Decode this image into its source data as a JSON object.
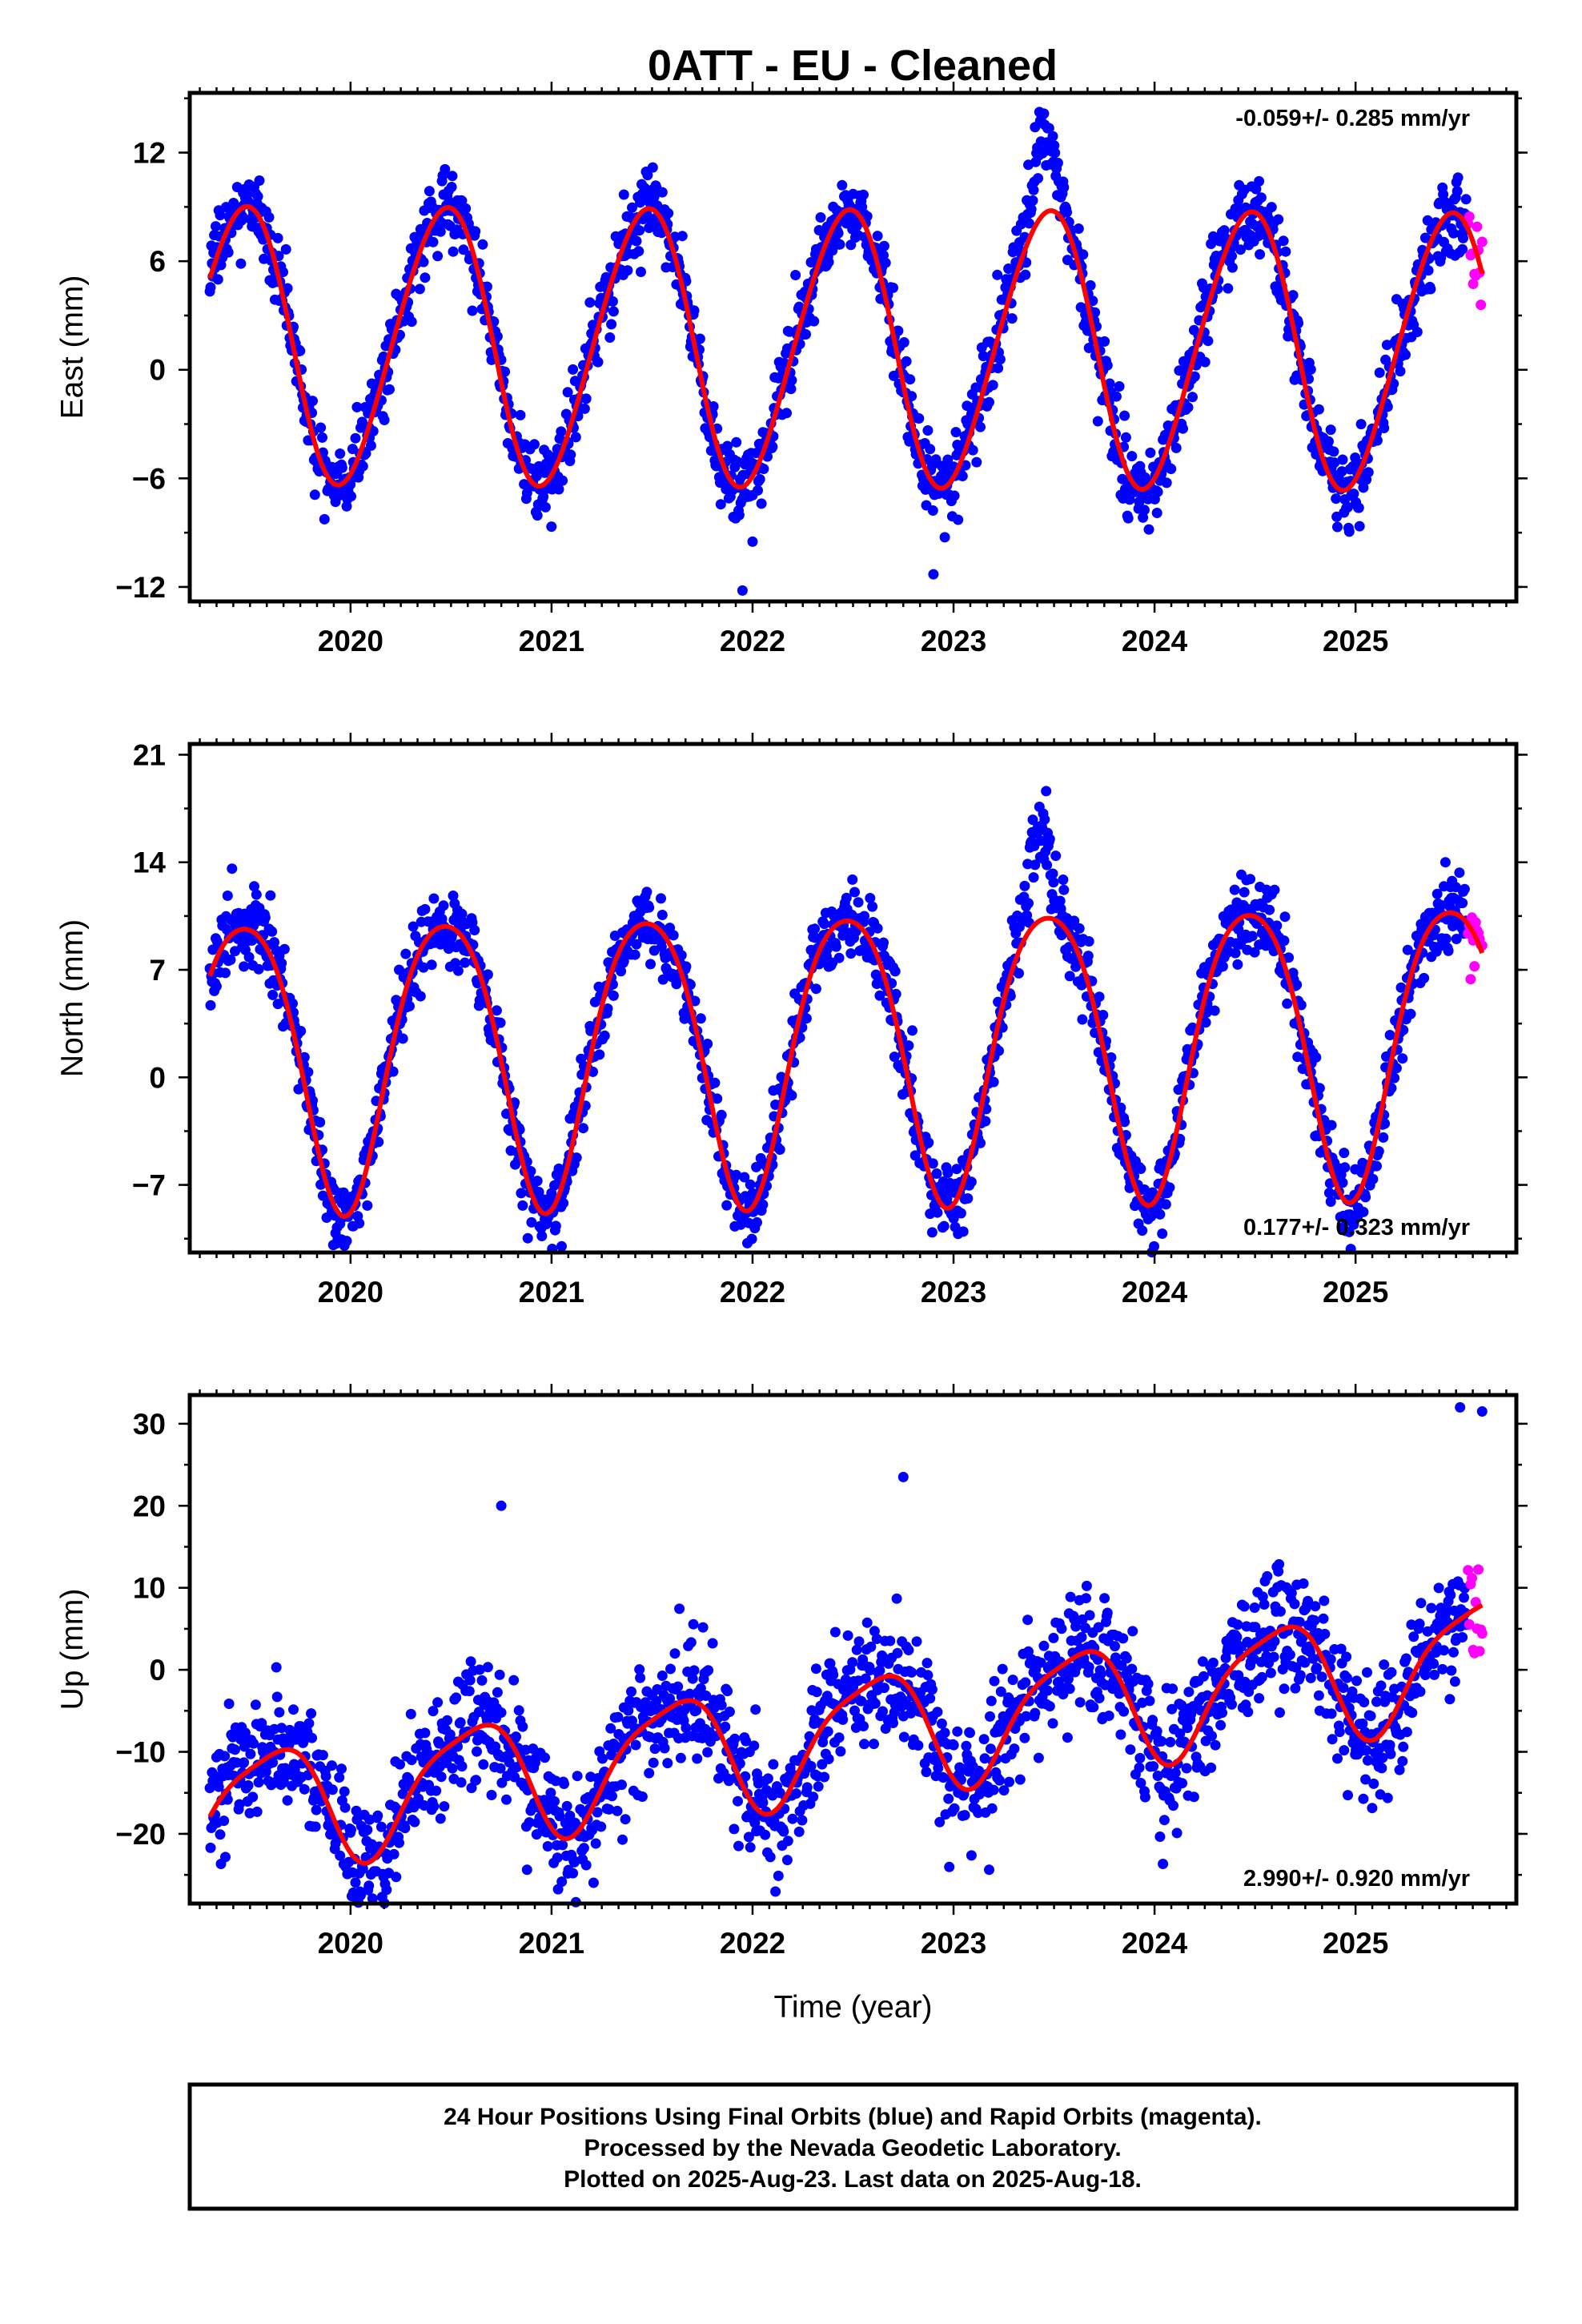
{
  "title": "0ATT  - EU - Cleaned",
  "footer": {
    "line1": "24 Hour Positions Using Final Orbits (blue) and Rapid Orbits (magenta).",
    "line2": "Processed by the Nevada Geodetic Laboratory.",
    "line3": "Plotted on 2025-Aug-23. Last data on 2025-Aug-18."
  },
  "colors": {
    "final": "#0000ff",
    "rapid": "#ff00ff",
    "fit": "#ff0000"
  },
  "chart_data": [
    {
      "type": "scatter",
      "component": "east",
      "ylabel": "East (mm)",
      "xlabel": "",
      "rate": "-0.059+/- 0.285 mm/yr",
      "rate_position": "top-right",
      "xlim": [
        2019.2,
        2025.8
      ],
      "ylim": [
        -12.8,
        15.3
      ],
      "xticks": [
        "2020",
        "2021",
        "2022",
        "2023",
        "2024",
        "2025"
      ],
      "yticks": [
        "12",
        "6",
        "0",
        "−6",
        "−12"
      ],
      "ytick_values": [
        12,
        6,
        0,
        -6,
        -12
      ],
      "data_range": [
        2019.3,
        2025.55
      ],
      "rapid_range": [
        2025.56,
        2025.63
      ],
      "fit": {
        "offset": 1.3,
        "rate": -0.059,
        "amp": 7.6,
        "peak": 2019.46,
        "amp2": 0.6,
        "peak2": 2019.6
      },
      "noise_sd": 1.1,
      "spikes": [
        {
          "center": 2023.45,
          "width": 0.08,
          "height": 4.5
        }
      ],
      "outliers": [
        {
          "x": 2021.95,
          "y": -12.2
        },
        {
          "x": 2022.9,
          "y": -11.3
        },
        {
          "x": 2022.0,
          "y": -9.5
        }
      ]
    },
    {
      "type": "scatter",
      "component": "north",
      "ylabel": "North (mm)",
      "xlabel": "",
      "rate": "0.177+/- 0.323 mm/yr",
      "rate_position": "bottom-right",
      "xlim": [
        2019.2,
        2025.8
      ],
      "ylim": [
        -11.4,
        21.7
      ],
      "xticks": [
        "2020",
        "2021",
        "2022",
        "2023",
        "2024",
        "2025"
      ],
      "yticks": [
        "21",
        "14",
        "7",
        "0",
        "−7"
      ],
      "ytick_values": [
        21,
        14,
        7,
        0,
        -7
      ],
      "data_range": [
        2019.3,
        2025.55
      ],
      "rapid_range": [
        2025.56,
        2025.63
      ],
      "fit": {
        "offset": 1.9,
        "rate": 0.177,
        "amp": 9.4,
        "peak": 2019.47,
        "amp2": 1.2,
        "peak2": 2019.72
      },
      "noise_sd": 1.2,
      "spikes": [
        {
          "center": 2023.43,
          "width": 0.07,
          "height": 6.5
        }
      ],
      "outliers": [
        {
          "x": 2021.05,
          "y": -11.0
        }
      ]
    },
    {
      "type": "scatter",
      "component": "up",
      "ylabel": "Up (mm)",
      "xlabel": "Time (year)",
      "rate": "2.990+/- 0.920 mm/yr",
      "rate_position": "bottom-right",
      "xlim": [
        2019.2,
        2025.8
      ],
      "ylim": [
        -28.5,
        33.5
      ],
      "xticks": [
        "2020",
        "2021",
        "2022",
        "2023",
        "2024",
        "2025"
      ],
      "yticks": [
        "30",
        "20",
        "10",
        "0",
        "−10",
        "−20"
      ],
      "ytick_values": [
        30,
        20,
        10,
        0,
        -10,
        -20
      ],
      "data_range": [
        2019.3,
        2025.55
      ],
      "rapid_range": [
        2025.56,
        2025.63
      ],
      "fit": {
        "offset": -9.2,
        "rate": 2.99,
        "amp": 7.2,
        "peak": 2019.6,
        "amp2": 1.6,
        "peak2": 2019.3
      },
      "noise_sd": 3.8,
      "spikes": [],
      "outliers": [
        {
          "x": 2020.05,
          "y": -27.5
        },
        {
          "x": 2025.52,
          "y": 32.0
        },
        {
          "x": 2025.63,
          "y": 31.5
        },
        {
          "x": 2022.75,
          "y": 23.5
        },
        {
          "x": 2020.75,
          "y": 20.0
        }
      ]
    }
  ]
}
